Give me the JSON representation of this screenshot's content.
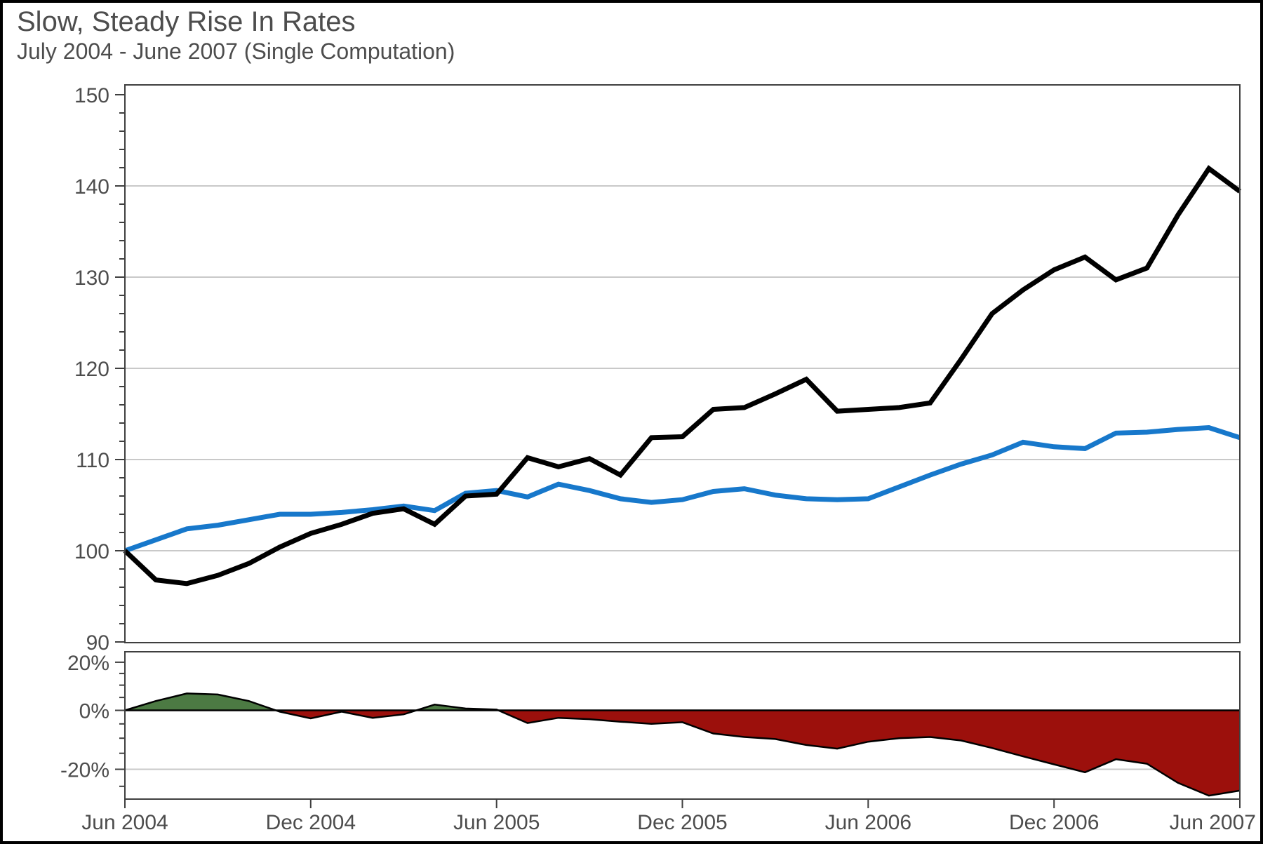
{
  "title": "Slow, Steady Rise In Rates",
  "subtitle": "July 2004 - June 2007 (Single Computation)",
  "colors": {
    "text": "#4D4D4D",
    "axis": "#3F3F3F",
    "grid": "#C9C9C9",
    "background": "#FFFFFF",
    "frame": "#000000",
    "black_line": "#000000",
    "blue_line": "#1778CB",
    "positive_fill": "#4C7A43",
    "negative_fill": "#9C100C"
  },
  "chart_data": {
    "type": "line",
    "title": "Slow, Steady Rise In Rates",
    "subtitle": "July 2004 - June 2007 (Single Computation)",
    "x": [
      "Jun 2004",
      "Jul 2004",
      "Aug 2004",
      "Sep 2004",
      "Oct 2004",
      "Nov 2004",
      "Dec 2004",
      "Jan 2005",
      "Feb 2005",
      "Mar 2005",
      "Apr 2005",
      "May 2005",
      "Jun 2005",
      "Jul 2005",
      "Aug 2005",
      "Sep 2005",
      "Oct 2005",
      "Nov 2005",
      "Dec 2005",
      "Jan 2006",
      "Feb 2006",
      "Mar 2006",
      "Apr 2006",
      "May 2006",
      "Jun 2006",
      "Jul 2006",
      "Aug 2006",
      "Sep 2006",
      "Oct 2006",
      "Nov 2006",
      "Dec 2006",
      "Jan 2007",
      "Feb 2007",
      "Mar 2007",
      "Apr 2007",
      "May 2007",
      "Jun 2007"
    ],
    "series": [
      {
        "name": "series-blue",
        "color": "#1778CB",
        "values": [
          100.0,
          101.2,
          102.4,
          102.8,
          103.4,
          104.0,
          104.0,
          104.2,
          104.5,
          104.9,
          104.4,
          106.3,
          106.6,
          105.9,
          107.3,
          106.6,
          105.7,
          105.3,
          105.6,
          106.5,
          106.8,
          106.1,
          105.7,
          105.6,
          105.7,
          107.0,
          108.3,
          109.5,
          110.5,
          111.9,
          111.4,
          111.2,
          112.9,
          113.0,
          113.3,
          113.5,
          112.4
        ]
      },
      {
        "name": "series-black",
        "color": "#000000",
        "values": [
          100.0,
          96.8,
          96.4,
          97.3,
          98.6,
          100.4,
          101.9,
          102.9,
          104.1,
          104.6,
          102.9,
          106.0,
          106.2,
          110.2,
          109.2,
          110.1,
          108.3,
          112.4,
          112.5,
          115.5,
          115.7,
          117.2,
          118.8,
          115.3,
          115.5,
          115.7,
          116.2,
          121.0,
          126.0,
          128.6,
          130.8,
          132.2,
          129.7,
          131.0,
          136.8,
          141.9,
          139.4
        ]
      }
    ],
    "main_y_axis": {
      "tick_labels": [
        "150",
        "140",
        "130",
        "120",
        "110",
        "100",
        "90"
      ],
      "ticks": [
        150,
        140,
        130,
        120,
        110,
        100,
        90
      ],
      "minor_tick_step": 2,
      "gridlines": [
        140,
        130,
        120,
        110,
        100
      ],
      "range": [
        89.9,
        151.1
      ]
    },
    "relative_panel": {
      "name": "relative-performance-area",
      "values": [
        0.0,
        3.6,
        6.6,
        6.2,
        3.6,
        -0.5,
        -3.0,
        -0.5,
        -2.8,
        -1.5,
        2.2,
        0.7,
        0.3,
        -4.7,
        -2.8,
        -3.3,
        -4.2,
        -5.0,
        -4.4,
        -8.4,
        -9.6,
        -10.3,
        -12.3,
        -13.5,
        -11.2,
        -10.0,
        -9.6,
        -10.8,
        -13.3,
        -16.0,
        -18.5,
        -20.9,
        -16.9,
        -18.3,
        -24.0,
        -27.6,
        -26.2
      ],
      "tick_labels": [
        "20%",
        "0%",
        "-20%"
      ],
      "ticks_pct": [
        20,
        0,
        -20
      ],
      "gridline_pct": -20,
      "scale": "log-ratio",
      "range_pct": [
        -28.5,
        24.8
      ]
    },
    "x_axis": {
      "tick_labels": [
        "Jun 2004",
        "Dec 2004",
        "Jun 2005",
        "Dec 2005",
        "Jun 2006",
        "Dec 2006",
        "Jun 2007"
      ],
      "tick_month_indices": [
        0,
        6,
        12,
        18,
        24,
        30,
        36
      ]
    },
    "legend": "none",
    "grid": "horizontal-only"
  }
}
